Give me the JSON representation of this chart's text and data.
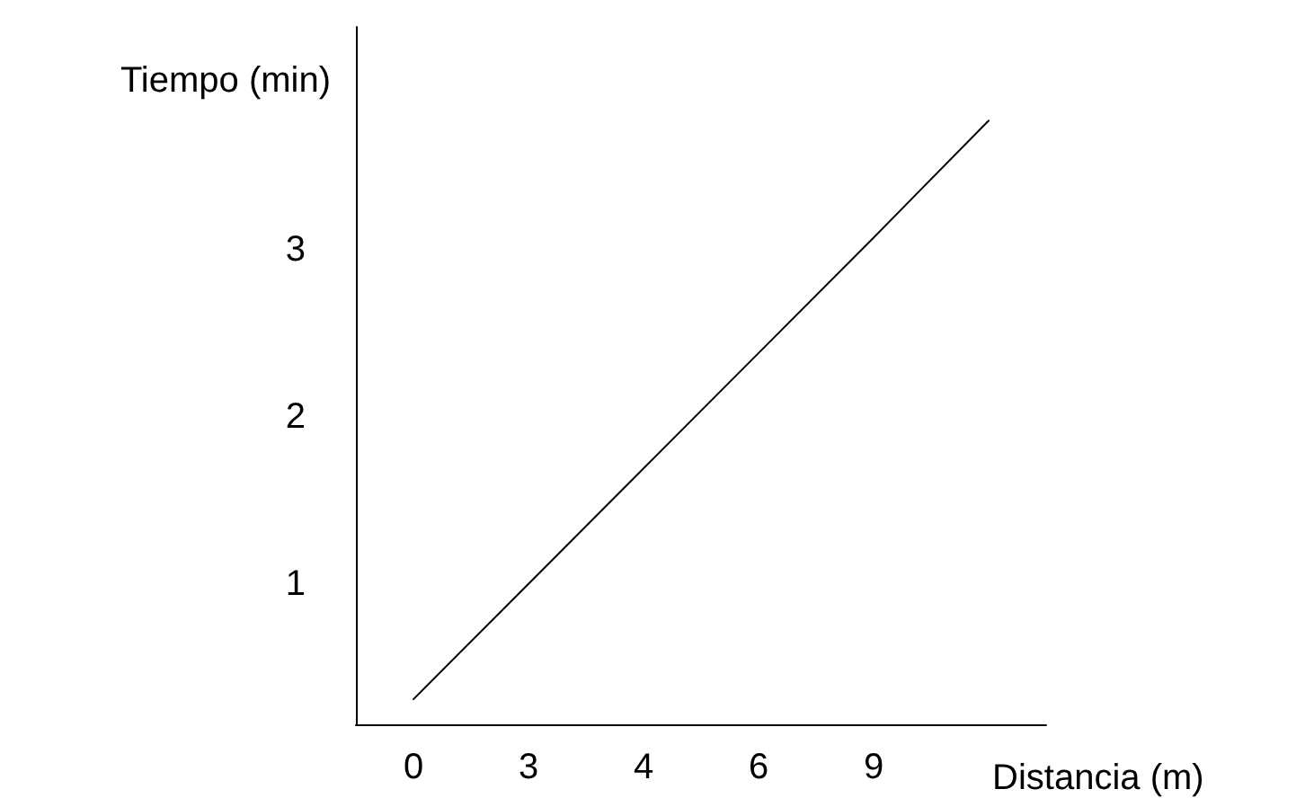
{
  "chart_data": {
    "type": "line",
    "xlabel": "Distancia (m)",
    "ylabel": "Tiempo (min)",
    "categories": [
      "0",
      "3",
      "4",
      "6",
      "9",
      null
    ],
    "series": [
      {
        "color": "#000000",
        "values": [
          0.31,
          1.0,
          1.69,
          2.38,
          3.07,
          3.77
        ]
      }
    ],
    "ylim": [
      0.16,
      4.33
    ],
    "yticks": [
      1,
      2,
      3
    ],
    "grid": false,
    "marker": "none",
    "line_style": "solid"
  }
}
